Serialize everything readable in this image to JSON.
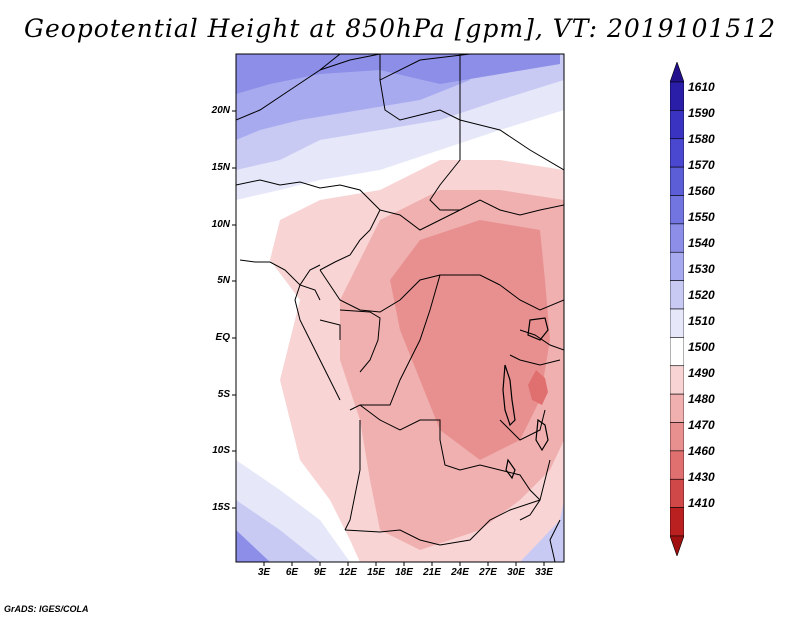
{
  "title": "Geopotential Height at 850hPa [gpm], VT: 2019101512",
  "footer": "GrADS: IGES/COLA",
  "map": {
    "region": "Central Africa",
    "variable": "Geopotential Height",
    "level": "850hPa",
    "units": "gpm",
    "valid_time": "2019101512",
    "lat_labels": [
      "20N",
      "15N",
      "10N",
      "5N",
      "EQ",
      "5S",
      "10S",
      "15S"
    ],
    "lon_labels": [
      "3E",
      "6E",
      "9E",
      "12E",
      "15E",
      "18E",
      "21E",
      "24E",
      "27E",
      "30E",
      "33E"
    ]
  },
  "colorbar": {
    "levels": [
      "1610",
      "1590",
      "1580",
      "1570",
      "1560",
      "1550",
      "1540",
      "1530",
      "1520",
      "1510",
      "1500",
      "1490",
      "1480",
      "1470",
      "1460",
      "1430",
      "1410"
    ],
    "colors": [
      "#22108c",
      "#2a1ea8",
      "#3a32c0",
      "#4a48d0",
      "#5c5ed8",
      "#7274e0",
      "#8c8ee8",
      "#a8aaf0",
      "#c8caf4",
      "#e6e8fa",
      "#ffffff",
      "#f8d4d4",
      "#f0b0b0",
      "#e89090",
      "#e07070",
      "#d04848",
      "#bb2020",
      "#a01010"
    ]
  }
}
